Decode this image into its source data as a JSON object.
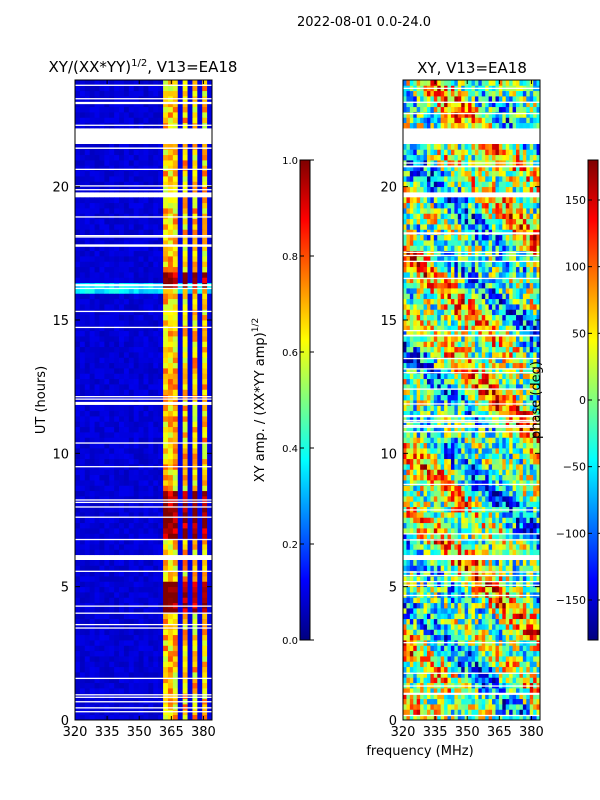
{
  "suptitle": "2022-08-01 0.0-24.0",
  "xlabel": "frequency (MHz)",
  "chart_data": [
    {
      "type": "heatmap",
      "title": "XY/(XX*YY)$^{1/2}$, V13=EA18",
      "title_main": "XY/(XX*YY)",
      "title_exp": "1/2",
      "title_tail": ", V13=EA18",
      "ylabel": "UT (hours)",
      "xlim": [
        320,
        384
      ],
      "ylim": [
        0,
        24
      ],
      "xticks": [
        320,
        335,
        350,
        365,
        380
      ],
      "yticks": [
        0,
        5,
        10,
        15,
        20
      ],
      "colorbar": {
        "label": "XY amp. / (XX*YY amp)$^{1/2}$",
        "label_main": "XY amp. / (XX*YY amp)",
        "label_exp": "1/2",
        "range": [
          0,
          1
        ],
        "ticks": [
          0.0,
          0.2,
          0.4,
          0.6,
          0.8,
          1.0
        ],
        "tick_labels": [
          "0.0",
          "0.2",
          "0.4",
          "0.6",
          "0.8",
          "1.0"
        ],
        "colormap": "jet"
      },
      "flagged_hours": [
        [
          21.6,
          22.2
        ],
        [
          19.6,
          19.75
        ],
        [
          6.0,
          6.2
        ]
      ],
      "bright_channels_mhz": [
        361,
        366,
        371,
        376,
        381
      ]
    },
    {
      "type": "heatmap",
      "title": "XY, V13=EA18",
      "ylabel": "phase (deg)",
      "xlim": [
        320,
        384
      ],
      "ylim": [
        0,
        24
      ],
      "xticks": [
        320,
        335,
        350,
        365,
        380
      ],
      "yticks": [
        0,
        5,
        10,
        15,
        20
      ],
      "colorbar": {
        "label": "phase (deg)",
        "range": [
          -180,
          180
        ],
        "ticks": [
          -150,
          -100,
          -50,
          0,
          50,
          100,
          150
        ],
        "tick_labels": [
          "−150",
          "−100",
          "−50",
          "0",
          "50",
          "100",
          "150"
        ],
        "colormap": "jet"
      },
      "flagged_hours": [
        [
          21.6,
          22.2
        ],
        [
          19.6,
          19.75
        ],
        [
          6.0,
          6.2
        ]
      ]
    }
  ]
}
